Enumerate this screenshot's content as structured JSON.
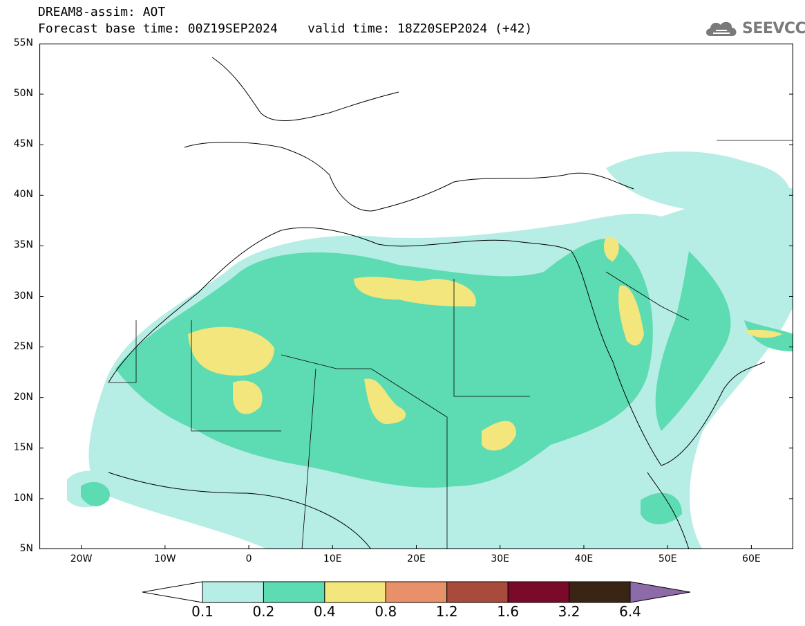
{
  "header": {
    "line1": "DREAM8-assim: AOT",
    "line2": "Forecast base time: 00Z19SEP2024    valid time: 18Z20SEP2024 (+42)"
  },
  "logo": {
    "text": "SEEVCCC",
    "icon": "cloud-icon"
  },
  "map": {
    "lon_range": [
      -25,
      65
    ],
    "lat_range": [
      5,
      55
    ],
    "lat_ticks": [
      {
        "v": 55,
        "label": "55N"
      },
      {
        "v": 50,
        "label": "50N"
      },
      {
        "v": 45,
        "label": "45N"
      },
      {
        "v": 40,
        "label": "40N"
      },
      {
        "v": 35,
        "label": "35N"
      },
      {
        "v": 30,
        "label": "30N"
      },
      {
        "v": 25,
        "label": "25N"
      },
      {
        "v": 20,
        "label": "20N"
      },
      {
        "v": 15,
        "label": "15N"
      },
      {
        "v": 10,
        "label": "10N"
      },
      {
        "v": 5,
        "label": "5N"
      }
    ],
    "lon_ticks": [
      {
        "v": -20,
        "label": "20W"
      },
      {
        "v": -10,
        "label": "10W"
      },
      {
        "v": 0,
        "label": "0"
      },
      {
        "v": 10,
        "label": "10E"
      },
      {
        "v": 20,
        "label": "20E"
      },
      {
        "v": 30,
        "label": "30E"
      },
      {
        "v": 40,
        "label": "40E"
      },
      {
        "v": 50,
        "label": "50E"
      },
      {
        "v": 60,
        "label": "60E"
      }
    ]
  },
  "colorbar": {
    "under_color": "#ffffff",
    "over_color": "#8c6ba8",
    "bins": [
      {
        "color": "#b6ede4"
      },
      {
        "color": "#5ddbb2"
      },
      {
        "color": "#f2e67d"
      },
      {
        "color": "#e8906a"
      },
      {
        "color": "#a84a3c"
      },
      {
        "color": "#7a0a2a"
      },
      {
        "color": "#3a2515"
      }
    ],
    "labels": [
      "0.1",
      "0.2",
      "0.4",
      "0.8",
      "1.2",
      "1.6",
      "3.2",
      "6.4"
    ]
  }
}
